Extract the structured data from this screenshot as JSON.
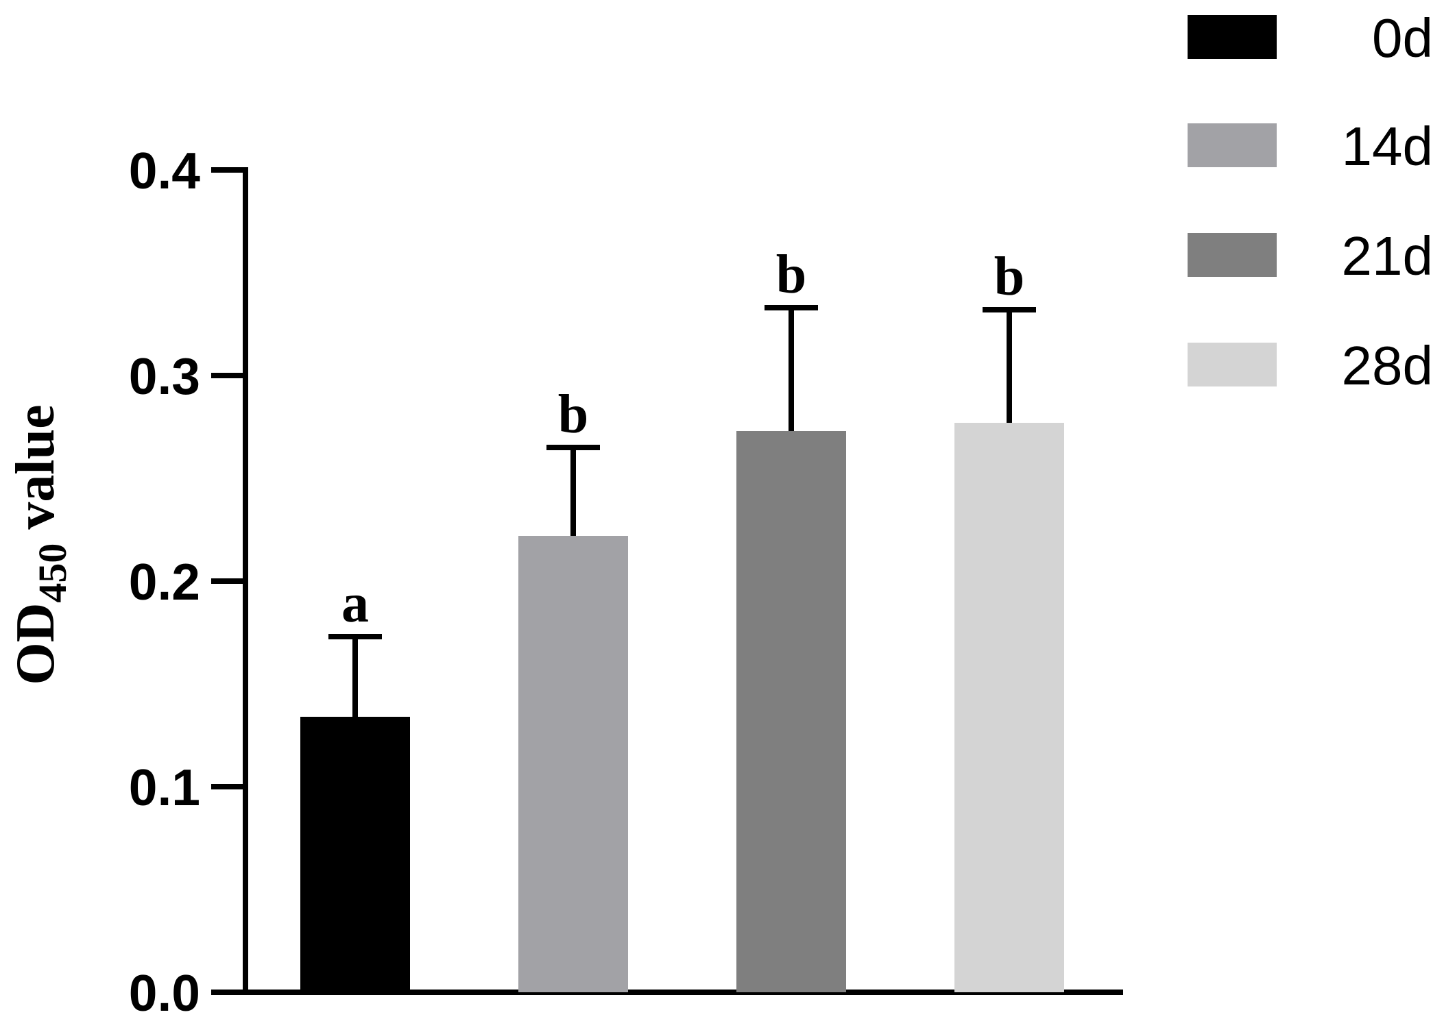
{
  "chart_data": {
    "type": "bar",
    "categories": [
      "0d",
      "14d",
      "21d",
      "28d"
    ],
    "values": [
      0.134,
      0.222,
      0.273,
      0.277
    ],
    "errors": [
      0.039,
      0.043,
      0.06,
      0.055
    ],
    "significance": [
      "a",
      "b",
      "b",
      "b"
    ],
    "colors": [
      "#000000",
      "#a2a2a6",
      "#7f7f7f",
      "#d4d4d4"
    ],
    "ylabel_main": "OD",
    "ylabel_sub": "450",
    "ylabel_rest": " value",
    "ylim": [
      0,
      0.4
    ],
    "yticks": [
      0.0,
      0.1,
      0.2,
      0.3,
      0.4
    ],
    "ytick_labels": [
      "0.0",
      "0.1",
      "0.2",
      "0.3",
      "0.4"
    ],
    "legend": {
      "position": "top-right",
      "entries": [
        "0d",
        "14d",
        "21d",
        "28d"
      ]
    },
    "grid": false
  }
}
